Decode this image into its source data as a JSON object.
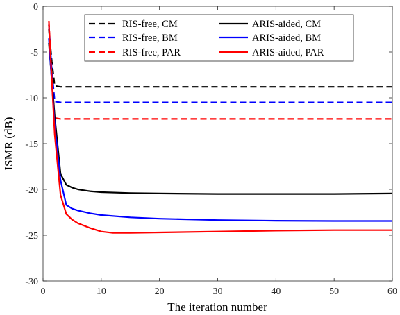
{
  "chart_data": {
    "type": "line",
    "title": "",
    "xlabel": "The iteration number",
    "ylabel": "ISMR (dB)",
    "xlim": [
      0,
      60
    ],
    "ylim": [
      -30,
      0
    ],
    "xticks": [
      0,
      10,
      20,
      30,
      40,
      50,
      60
    ],
    "yticks": [
      0,
      -5,
      -10,
      -15,
      -20,
      -25,
      -30
    ],
    "grid": false,
    "legend_position": "top-right",
    "legend_columns": 2,
    "series": [
      {
        "name": "RIS-free, CM",
        "color": "#000000",
        "dash": "dashed",
        "x": [
          1,
          1.5,
          2,
          3,
          5,
          10,
          20,
          30,
          40,
          50,
          60
        ],
        "y": [
          -2.5,
          -6.0,
          -8.7,
          -8.8,
          -8.8,
          -8.8,
          -8.8,
          -8.8,
          -8.8,
          -8.8,
          -8.8
        ]
      },
      {
        "name": "RIS-free, BM",
        "color": "#0000ff",
        "dash": "dashed",
        "x": [
          1,
          1.5,
          2,
          3,
          5,
          10,
          20,
          30,
          40,
          50,
          60
        ],
        "y": [
          -2.0,
          -7.0,
          -10.4,
          -10.5,
          -10.5,
          -10.5,
          -10.5,
          -10.5,
          -10.5,
          -10.5,
          -10.5
        ]
      },
      {
        "name": "RIS-free, PAR",
        "color": "#ff0000",
        "dash": "dashed",
        "x": [
          1,
          1.5,
          2,
          3,
          5,
          10,
          20,
          30,
          40,
          50,
          60
        ],
        "y": [
          -1.6,
          -8.0,
          -12.2,
          -12.3,
          -12.3,
          -12.3,
          -12.3,
          -12.3,
          -12.3,
          -12.3,
          -12.3
        ]
      },
      {
        "name": "ARIS-aided, CM",
        "color": "#000000",
        "dash": "solid",
        "x": [
          1,
          2,
          3,
          4,
          5,
          6,
          8,
          10,
          15,
          20,
          30,
          40,
          50,
          60
        ],
        "y": [
          -4.0,
          -12.0,
          -18.3,
          -19.5,
          -19.8,
          -20.0,
          -20.2,
          -20.3,
          -20.4,
          -20.45,
          -20.5,
          -20.5,
          -20.5,
          -20.45
        ]
      },
      {
        "name": "ARIS-aided, BM",
        "color": "#0000ff",
        "dash": "solid",
        "x": [
          1,
          2,
          3,
          4,
          5,
          6,
          8,
          10,
          15,
          20,
          30,
          40,
          50,
          60
        ],
        "y": [
          -3.5,
          -13.0,
          -19.0,
          -21.7,
          -22.1,
          -22.3,
          -22.6,
          -22.8,
          -23.05,
          -23.2,
          -23.35,
          -23.42,
          -23.45,
          -23.45
        ]
      },
      {
        "name": "ARIS-aided, PAR",
        "color": "#ff0000",
        "dash": "solid",
        "x": [
          1,
          2,
          3,
          4,
          5,
          6,
          8,
          10,
          12,
          15,
          20,
          30,
          40,
          50,
          60
        ],
        "y": [
          -2.0,
          -14.0,
          -20.6,
          -22.7,
          -23.3,
          -23.7,
          -24.2,
          -24.6,
          -24.75,
          -24.75,
          -24.7,
          -24.6,
          -24.5,
          -24.45,
          -24.45
        ]
      }
    ]
  }
}
